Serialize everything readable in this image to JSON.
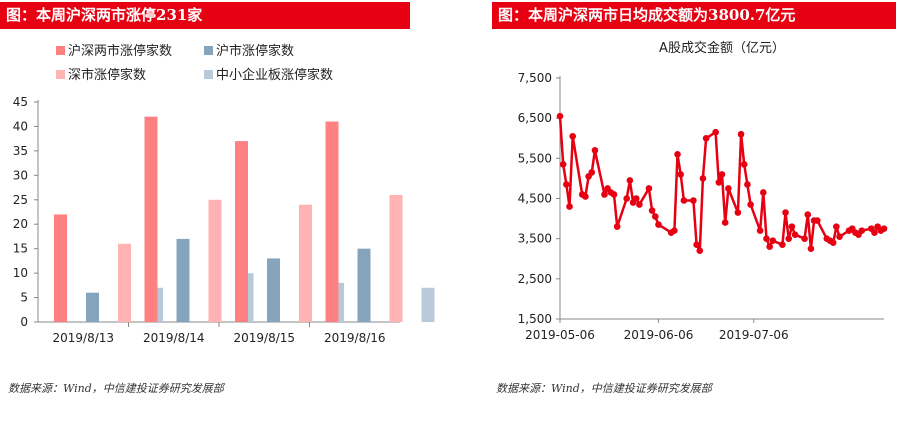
{
  "left": {
    "title": "图：本周沪深两市涨停231家",
    "source": "数据来源：Wind，中信建投证券研究发展部",
    "chart_data": {
      "type": "bar",
      "categories": [
        "2019/8/13",
        "2019/8/14",
        "2019/8/15",
        "2019/8/16"
      ],
      "series": [
        {
          "name": "沪深两市涨停家数",
          "values": [
            22,
            42,
            37,
            41
          ],
          "color": "#ff8080"
        },
        {
          "name": "沪市涨停家数",
          "values": [
            6,
            17,
            13,
            15
          ],
          "color": "#86a5bd"
        },
        {
          "name": "深市涨停家数",
          "values": [
            16,
            25,
            24,
            26
          ],
          "color": "#ffb3b3"
        },
        {
          "name": "中小企业板涨停家数",
          "values": [
            7,
            10,
            8,
            7
          ],
          "color": "#b8cad9"
        }
      ],
      "ylim": [
        0,
        45
      ],
      "yticks": [
        0,
        5,
        10,
        15,
        20,
        25,
        30,
        35,
        40,
        45
      ],
      "legend_position": "top",
      "grid": false
    }
  },
  "right": {
    "title": "图：本周沪深两市日均成交额为3800.7亿元",
    "source": "数据来源：Wind，中信建投证券研究发展部",
    "chart_data": {
      "type": "line",
      "title": "A股成交金额（亿元）",
      "color": "#e60012",
      "ylim": [
        1500,
        7500
      ],
      "yticks": [
        1500,
        2500,
        3500,
        4500,
        5500,
        6500,
        7500
      ],
      "ytick_labels": [
        "1,500",
        "2,500",
        "3,500",
        "4,500",
        "5,500",
        "6,500",
        "7,500"
      ],
      "xtick_labels": [
        "2019-05-06",
        "2019-06-06",
        "2019-07-06"
      ],
      "x": [
        "2019-05-06",
        "2019-05-07",
        "2019-05-08",
        "2019-05-09",
        "2019-05-10",
        "2019-05-13",
        "2019-05-14",
        "2019-05-15",
        "2019-05-16",
        "2019-05-17",
        "2019-05-20",
        "2019-05-21",
        "2019-05-22",
        "2019-05-23",
        "2019-05-24",
        "2019-05-27",
        "2019-05-28",
        "2019-05-29",
        "2019-05-30",
        "2019-05-31",
        "2019-06-03",
        "2019-06-04",
        "2019-06-05",
        "2019-06-06",
        "2019-06-10",
        "2019-06-11",
        "2019-06-12",
        "2019-06-13",
        "2019-06-14",
        "2019-06-17",
        "2019-06-18",
        "2019-06-19",
        "2019-06-20",
        "2019-06-21",
        "2019-06-24",
        "2019-06-25",
        "2019-06-26",
        "2019-06-27",
        "2019-06-28",
        "2019-07-01",
        "2019-07-02",
        "2019-07-03",
        "2019-07-04",
        "2019-07-05",
        "2019-07-08",
        "2019-07-09",
        "2019-07-10",
        "2019-07-11",
        "2019-07-12",
        "2019-07-15",
        "2019-07-16",
        "2019-07-17",
        "2019-07-18",
        "2019-07-19",
        "2019-07-22",
        "2019-07-23",
        "2019-07-24",
        "2019-07-25",
        "2019-07-26",
        "2019-07-29",
        "2019-07-30",
        "2019-07-31",
        "2019-08-01",
        "2019-08-02",
        "2019-08-05",
        "2019-08-06",
        "2019-08-07",
        "2019-08-08",
        "2019-08-09",
        "2019-08-12",
        "2019-08-13",
        "2019-08-14",
        "2019-08-15",
        "2019-08-16"
      ],
      "values": [
        6550,
        5350,
        4850,
        4300,
        6050,
        4600,
        4550,
        5050,
        5150,
        5700,
        4600,
        4750,
        4650,
        4600,
        3800,
        4500,
        4950,
        4400,
        4500,
        4350,
        4750,
        4200,
        4050,
        3850,
        3650,
        3700,
        5600,
        5100,
        4450,
        4450,
        3350,
        3200,
        5000,
        6000,
        6150,
        4900,
        5100,
        3900,
        4750,
        4150,
        6100,
        5350,
        4850,
        4350,
        3700,
        4650,
        3500,
        3300,
        3450,
        3350,
        4150,
        3500,
        3800,
        3600,
        3500,
        4100,
        3250,
        3950,
        3950,
        3500,
        3450,
        3400,
        3800,
        3550,
        3700,
        3750,
        3650,
        3600,
        3700,
        3750,
        3650,
        3800,
        3700,
        3750
      ]
    }
  }
}
